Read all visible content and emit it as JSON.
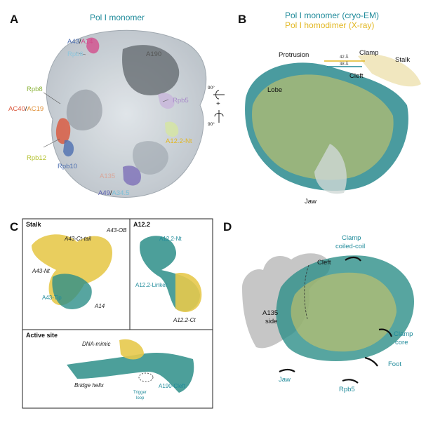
{
  "panel_a": {
    "letter": "A",
    "title": "Pol I monomer",
    "labels": {
      "a43": "A43",
      "a14": "A14",
      "rpb6": "Rpb6",
      "a190": "A190",
      "rpb8": "Rpb8",
      "rpb5": "Rpb5",
      "ac40": "AC40",
      "ac19": "AC19",
      "a12_nt": "A12.2-Nt",
      "rpb12": "Rpb12",
      "rpb10": "Rpb10",
      "a135": "A135",
      "a49": "A49",
      "a34_5": "A34.5"
    },
    "rotation_top": "90°",
    "rotation_plus": "+",
    "rotation_bottom": "90°"
  },
  "panel_b": {
    "letter": "B",
    "title_monomer": "Pol I monomer (cryo-EM)",
    "title_dimer": "Pol I homodimer (X-ray)",
    "labels": {
      "protrusion": "Protrusion",
      "clamp": "Clamp",
      "stalk": "Stalk",
      "lobe": "Lobe",
      "cleft": "Cleft",
      "jaw": "Jaw",
      "dist42": "42 Å",
      "dist38": "38 Å"
    }
  },
  "panel_c": {
    "letter": "C",
    "stalk": {
      "title": "Stalk",
      "labels": {
        "ct_tail": "A43-Ct-tail",
        "ob": "A43-OB",
        "nt": "A43-Nt",
        "tip": "A43-Tip",
        "a14": "A14"
      }
    },
    "a12": {
      "title": "A12.2",
      "labels": {
        "nt": "A12.2-Nt",
        "linker": "A12.2-Linker",
        "ct": "A12.2-Ct"
      }
    },
    "active": {
      "title": "Active site",
      "labels": {
        "dna_mimic": "DNA-mimic",
        "bridge": "Bridge helix",
        "trigger1": "Trigger",
        "trigger2": "loop",
        "cleft": "A190-Cleft"
      }
    }
  },
  "panel_d": {
    "letter": "D",
    "labels": {
      "cleft": "Cleft",
      "clamp_cc1": "Clamp",
      "clamp_cc2": "coiled-coil",
      "a135_1": "A135",
      "a135_2": "side",
      "clamp_core1": "Clamp",
      "clamp_core2": "core",
      "foot": "Foot",
      "jaw": "Jaw",
      "rpb5": "Rpb5"
    }
  },
  "colors": {
    "teal": "#1f8a9a",
    "gold": "#e2b722",
    "grey_density": "#c9ced3",
    "dark_grey": "#4f555b"
  }
}
